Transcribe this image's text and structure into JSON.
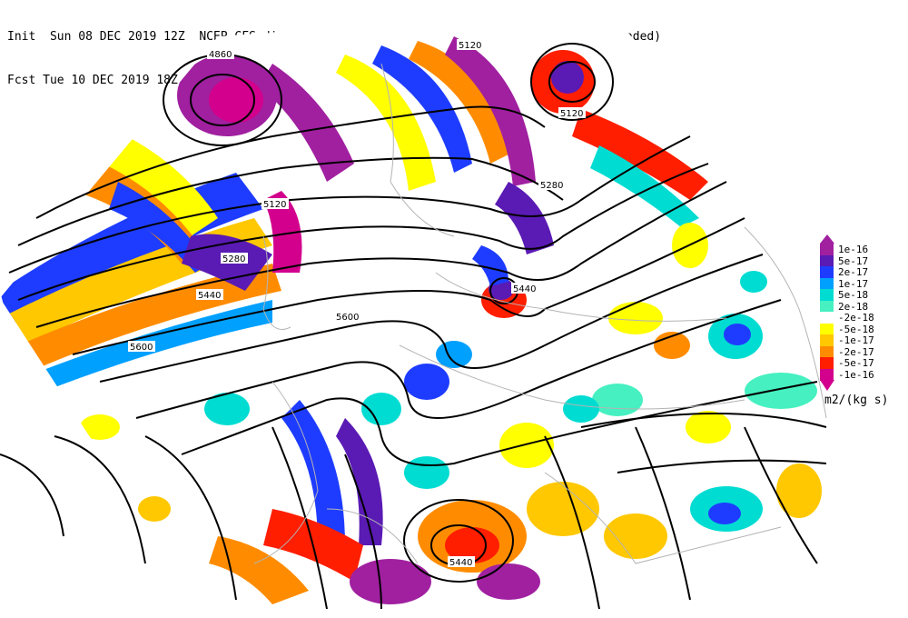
{
  "header": {
    "line1": "Init  Sun 08 DEC 2019 12Z  NCEP GFS divergence of the Q-vector at 500 hPa, smoothed (shaded)",
    "line2": "Fcst Tue 10 DEC 2019 18Z  and height (contours)"
  },
  "legend": {
    "units": "m2/(kg s)",
    "items": [
      {
        "label": "1e-16",
        "color": "#a020a0"
      },
      {
        "label": "5e-17",
        "color": "#5a1ab4"
      },
      {
        "label": "2e-17",
        "color": "#1e3cff"
      },
      {
        "label": "1e-17",
        "color": "#00a0ff"
      },
      {
        "label": "5e-18",
        "color": "#00dcd2"
      },
      {
        "label": "2e-18",
        "color": "#46f0c0"
      },
      {
        "label": "-2e-18",
        "color": "#ffffff"
      },
      {
        "label": "-5e-18",
        "color": "#ffff00"
      },
      {
        "label": "-1e-17",
        "color": "#ffc800"
      },
      {
        "label": "-2e-17",
        "color": "#ff8c00"
      },
      {
        "label": "-5e-17",
        "color": "#ff1e00"
      },
      {
        "label": "-1e-16",
        "color": "#d2008c"
      }
    ]
  },
  "contour_labels": [
    {
      "text": "4860"
    },
    {
      "text": "5120"
    },
    {
      "text": "5120"
    },
    {
      "text": "5120"
    },
    {
      "text": "5280"
    },
    {
      "text": "5280"
    },
    {
      "text": "5440"
    },
    {
      "text": "5440"
    },
    {
      "text": "5440"
    },
    {
      "text": "5600"
    },
    {
      "text": "5600"
    }
  ]
}
